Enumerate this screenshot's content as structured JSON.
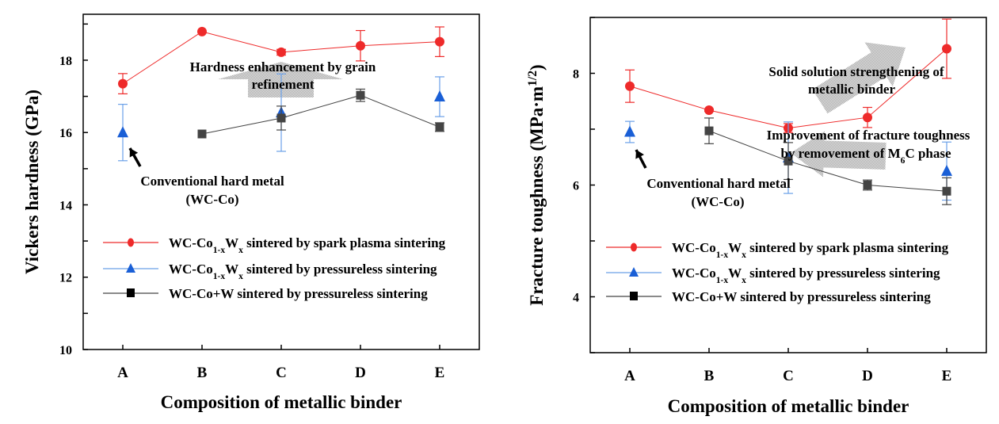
{
  "chart_data": [
    {
      "type": "line",
      "categories": [
        "A",
        "B",
        "C",
        "D",
        "E"
      ],
      "xlabel": "Composition of metallic binder",
      "ylabel": "Vickers hardness (GPa)",
      "ylim": [
        10,
        19.27
      ],
      "yticks": [
        10,
        12,
        14,
        16,
        18
      ],
      "grid": false,
      "legend_placement": "lower-center",
      "series": [
        {
          "name_parts": [
            {
              "t": "WC-Co"
            },
            {
              "t": "1-x",
              "sub": true
            },
            {
              "t": "W"
            },
            {
              "t": "x",
              "sub": true
            },
            {
              "t": " sintered by spark plasma sintering"
            }
          ],
          "color": "#ee2a2a",
          "marker": "circle",
          "values": [
            17.35,
            18.79,
            18.22,
            18.4,
            18.51
          ],
          "errors": [
            0.28,
            0,
            0.08,
            0.42,
            0.41
          ]
        },
        {
          "name_parts": [
            {
              "t": "WC-Co"
            },
            {
              "t": "1-x",
              "sub": true
            },
            {
              "t": "W"
            },
            {
              "t": "x",
              "sub": true
            },
            {
              "t": " sintered by pressureless sintering"
            }
          ],
          "color": "#1a5fd6",
          "errcolor": "#6aa0e8",
          "marker": "triangle",
          "connected": false,
          "values": [
            16.0,
            null,
            16.55,
            null,
            16.99
          ],
          "errors": [
            0.78,
            null,
            1.07,
            null,
            0.55
          ]
        },
        {
          "name_parts": [
            {
              "t": "WC-Co+W sintered by pressureless sintering"
            }
          ],
          "color": "#444444",
          "marker": "square",
          "values": [
            null,
            15.96,
            16.4,
            17.03,
            16.15
          ],
          "errors": [
            null,
            0,
            0.33,
            0.17,
            0.12
          ]
        }
      ],
      "annotations": [
        {
          "lines": [
            [
              {
                "t": "Hardness enhancement by grain"
              }
            ],
            [
              {
                "t": "refinement"
              }
            ]
          ]
        },
        {
          "lines": [
            [
              {
                "t": "Conventional hard metal"
              }
            ],
            [
              {
                "t": "(WC-Co)"
              }
            ]
          ]
        }
      ]
    },
    {
      "type": "line",
      "categories": [
        "A",
        "B",
        "C",
        "D",
        "E"
      ],
      "xlabel": "Composition of metallic binder",
      "ylabel_parts": [
        {
          "t": "Fracture toughness (MPa·m"
        },
        {
          "t": "1/2",
          "sup": true
        },
        {
          "t": ")"
        }
      ],
      "ylim": [
        3,
        9
      ],
      "yticks": [
        4,
        6,
        8
      ],
      "grid": false,
      "legend_placement": "lower-center",
      "series": [
        {
          "name_parts": [
            {
              "t": "WC-Co"
            },
            {
              "t": "1-x",
              "sub": true
            },
            {
              "t": "W"
            },
            {
              "t": "x",
              "sub": true
            },
            {
              "t": " sintered by spark plasma sintering"
            }
          ],
          "color": "#ee2a2a",
          "marker": "circle",
          "values": [
            7.77,
            7.34,
            7.02,
            7.21,
            8.44
          ],
          "errors": [
            0.29,
            0.02,
            0.08,
            0.18,
            0.53
          ]
        },
        {
          "name_parts": [
            {
              "t": "WC-Co"
            },
            {
              "t": "1-x",
              "sub": true
            },
            {
              "t": "W"
            },
            {
              "t": "x",
              "sub": true
            },
            {
              "t": " sintered by pressureless sintering"
            }
          ],
          "color": "#1a5fd6",
          "errcolor": "#6aa0e8",
          "marker": "triangle",
          "connected": false,
          "values": [
            6.95,
            null,
            6.49,
            null,
            6.25
          ],
          "errors": [
            0.19,
            null,
            0.64,
            null,
            0.52
          ]
        },
        {
          "name_parts": [
            {
              "t": "WC-Co+W sintered by pressureless sintering"
            }
          ],
          "color": "#444444",
          "marker": "square",
          "values": [
            null,
            6.97,
            6.43,
            6.0,
            5.89
          ],
          "errors": [
            null,
            0.23,
            0.33,
            0.09,
            0.24
          ]
        }
      ],
      "annotations": [
        {
          "lines": [
            [
              {
                "t": "Solid solution strengthening of"
              }
            ],
            [
              {
                "t": "metallic binder"
              }
            ]
          ]
        },
        {
          "lines": [
            [
              {
                "t": "Improvement of fracture toughness"
              }
            ],
            [
              {
                "t": "by removement of M"
              },
              {
                "t": "6",
                "sub": true
              },
              {
                "t": "C phase"
              }
            ]
          ]
        },
        {
          "lines": [
            [
              {
                "t": "Conventional hard metal"
              }
            ],
            [
              {
                "t": "(WC-Co)"
              }
            ]
          ]
        }
      ]
    }
  ]
}
